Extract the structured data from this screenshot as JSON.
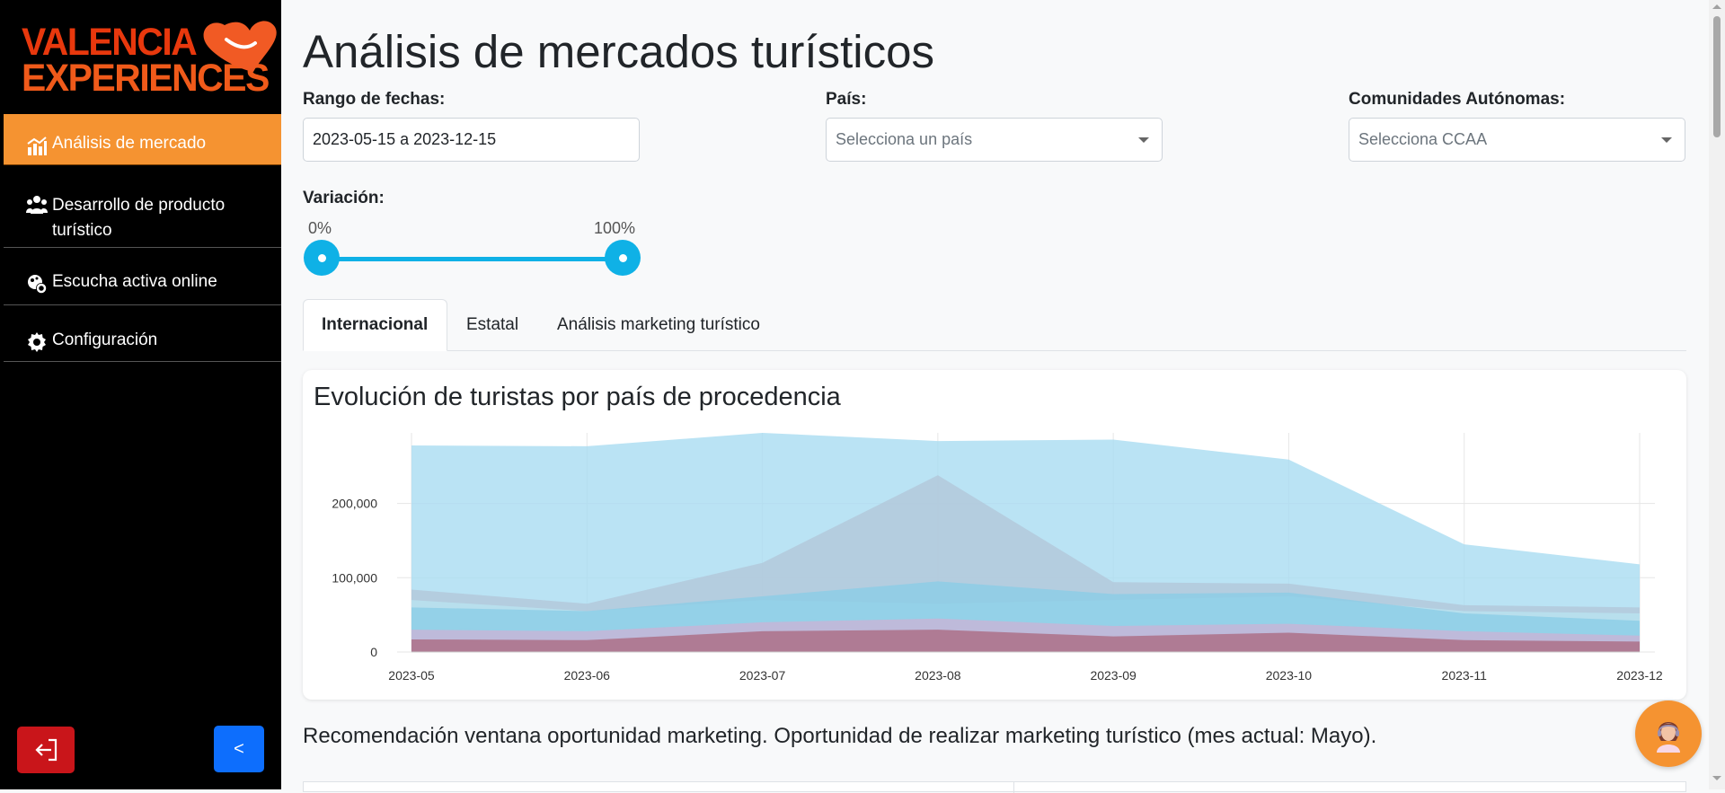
{
  "sidebar": {
    "logo": {
      "line1": "VALENCIA",
      "line2": "EXPERIENCES"
    },
    "items": [
      {
        "label": "Análisis de mercado",
        "icon": "bar-chart-icon",
        "active": true
      },
      {
        "label": "Desarrollo de producto turístico",
        "icon": "users-icon",
        "active": false
      },
      {
        "label": "Escucha activa online",
        "icon": "brain-gear-icon",
        "active": false
      },
      {
        "label": "Configuración",
        "icon": "gear-icon",
        "active": false
      }
    ],
    "collapse_label": "<"
  },
  "colors": {
    "brand_orange": "#f59331",
    "slider_blue": "#0fb1e6",
    "logout_red": "#c9151a",
    "collapse_blue": "#0d6efd"
  },
  "main": {
    "title": "Análisis de mercados turísticos",
    "filters": {
      "date_range": {
        "label": "Rango de fechas:",
        "value": "2023-05-15 a 2023-12-15"
      },
      "country": {
        "label": "País:",
        "placeholder": "Selecciona un país"
      },
      "ccaa": {
        "label": "Comunidades Autónomas:",
        "placeholder": "Selecciona CCAA"
      },
      "variation": {
        "label": "Variación:",
        "min_label": "0%",
        "max_label": "100%",
        "min": 0,
        "max": 100
      }
    },
    "tabs": [
      {
        "label": "Internacional",
        "active": true
      },
      {
        "label": "Estatal",
        "active": false
      },
      {
        "label": "Análisis marketing turístico",
        "active": false
      }
    ],
    "chart_title": "Evolución de turistas por país de procedencia",
    "recommendation": "Recomendación ventana oportunidad marketing. Oportunidad de realizar marketing turístico (mes actual: Mayo)."
  },
  "chart_data": {
    "type": "area",
    "title": "Evolución de turistas por país de procedencia",
    "x": [
      "2023-05",
      "2023-06",
      "2023-07",
      "2023-08",
      "2023-09",
      "2023-10",
      "2023-11",
      "2023-12"
    ],
    "y_ticks": [
      "0",
      "100,000",
      "200,000"
    ],
    "ylim": [
      0,
      295000
    ],
    "grid": true,
    "series": [
      {
        "color": "#a9dcf1",
        "values": [
          278000,
          277000,
          295000,
          284000,
          286000,
          259000,
          145000,
          118000
        ]
      },
      {
        "color": "#b3c7d9",
        "values": [
          84000,
          65000,
          120000,
          238000,
          94000,
          92000,
          63000,
          60000
        ]
      },
      {
        "color": "#b9e3f0",
        "values": [
          70000,
          55000,
          70000,
          65000,
          70000,
          75000,
          55000,
          52000
        ]
      },
      {
        "color": "#8bcde6",
        "values": [
          60000,
          55000,
          75000,
          95000,
          78000,
          80000,
          52000,
          42000
        ]
      },
      {
        "color": "#c8b4d6",
        "values": [
          30000,
          28000,
          40000,
          45000,
          35000,
          38000,
          28000,
          22000
        ]
      },
      {
        "color": "#ab6b82",
        "values": [
          17000,
          16000,
          28000,
          30000,
          21000,
          26000,
          16000,
          14000
        ]
      }
    ]
  }
}
